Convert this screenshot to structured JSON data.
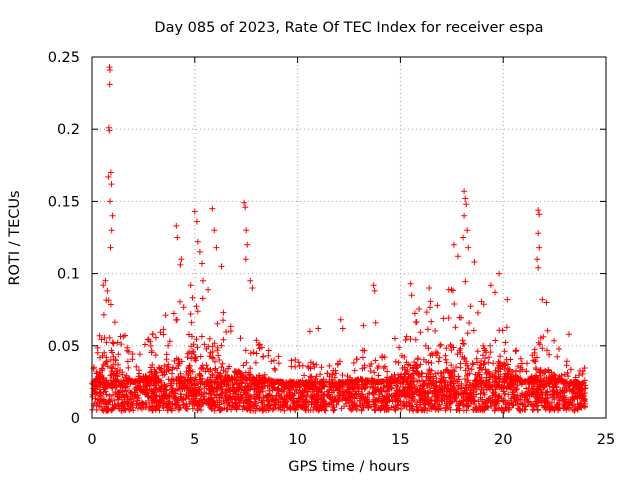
{
  "chart_data": {
    "type": "scatter",
    "title": "Day 085 of 2023, Rate Of TEC Index for receiver espa",
    "xlabel": "GPS time / hours",
    "ylabel": "ROTI / TECUs",
    "xlim": [
      0,
      25
    ],
    "ylim": [
      0,
      0.25
    ],
    "grid": true,
    "marker": "+",
    "series_color": "#ff0000",
    "x_ticks": [
      {
        "v": 0,
        "label": "0"
      },
      {
        "v": 5,
        "label": "5"
      },
      {
        "v": 10,
        "label": "10"
      },
      {
        "v": 15,
        "label": "15"
      },
      {
        "v": 20,
        "label": "20"
      },
      {
        "v": 25,
        "label": "25"
      }
    ],
    "y_ticks": [
      {
        "v": 0,
        "label": "0"
      },
      {
        "v": 0.05,
        "label": "0.05"
      },
      {
        "v": 0.1,
        "label": "0.1"
      },
      {
        "v": 0.15,
        "label": "0.15"
      },
      {
        "v": 0.2,
        "label": "0.2"
      },
      {
        "v": 0.25,
        "label": "0.25"
      }
    ],
    "data_x_range_hours": [
      0,
      24
    ],
    "baseline_band": [
      0.005,
      0.025
    ],
    "activity_envelope": [
      {
        "x": 0.0,
        "y": 0.04
      },
      {
        "x": 0.5,
        "y": 0.065
      },
      {
        "x": 0.8,
        "y": 0.1
      },
      {
        "x": 1.2,
        "y": 0.07
      },
      {
        "x": 2.0,
        "y": 0.045
      },
      {
        "x": 3.0,
        "y": 0.06
      },
      {
        "x": 4.0,
        "y": 0.085
      },
      {
        "x": 5.0,
        "y": 0.1
      },
      {
        "x": 6.0,
        "y": 0.09
      },
      {
        "x": 7.0,
        "y": 0.06
      },
      {
        "x": 8.0,
        "y": 0.055
      },
      {
        "x": 9.0,
        "y": 0.045
      },
      {
        "x": 10.0,
        "y": 0.04
      },
      {
        "x": 11.0,
        "y": 0.038
      },
      {
        "x": 12.0,
        "y": 0.04
      },
      {
        "x": 13.0,
        "y": 0.05
      },
      {
        "x": 14.0,
        "y": 0.045
      },
      {
        "x": 15.0,
        "y": 0.06
      },
      {
        "x": 16.0,
        "y": 0.08
      },
      {
        "x": 17.0,
        "y": 0.085
      },
      {
        "x": 18.0,
        "y": 0.1
      },
      {
        "x": 19.0,
        "y": 0.08
      },
      {
        "x": 20.0,
        "y": 0.07
      },
      {
        "x": 21.0,
        "y": 0.045
      },
      {
        "x": 22.0,
        "y": 0.065
      },
      {
        "x": 23.0,
        "y": 0.045
      },
      {
        "x": 24.0,
        "y": 0.035
      }
    ],
    "highlighted_points": [
      {
        "x": 0.85,
        "y": 0.243
      },
      {
        "x": 0.87,
        "y": 0.241
      },
      {
        "x": 0.86,
        "y": 0.231
      },
      {
        "x": 0.82,
        "y": 0.201
      },
      {
        "x": 0.84,
        "y": 0.199
      },
      {
        "x": 0.8,
        "y": 0.167
      },
      {
        "x": 0.92,
        "y": 0.17
      },
      {
        "x": 0.95,
        "y": 0.162
      },
      {
        "x": 0.88,
        "y": 0.15
      },
      {
        "x": 1.0,
        "y": 0.14
      },
      {
        "x": 0.96,
        "y": 0.13
      },
      {
        "x": 0.9,
        "y": 0.118
      },
      {
        "x": 0.55,
        "y": 0.092
      },
      {
        "x": 0.65,
        "y": 0.095
      },
      {
        "x": 0.75,
        "y": 0.088
      },
      {
        "x": 4.1,
        "y": 0.133
      },
      {
        "x": 4.15,
        "y": 0.125
      },
      {
        "x": 4.3,
        "y": 0.106
      },
      {
        "x": 4.35,
        "y": 0.11
      },
      {
        "x": 4.8,
        "y": 0.092
      },
      {
        "x": 5.0,
        "y": 0.143
      },
      {
        "x": 5.1,
        "y": 0.136
      },
      {
        "x": 5.15,
        "y": 0.122
      },
      {
        "x": 5.25,
        "y": 0.115
      },
      {
        "x": 5.35,
        "y": 0.107
      },
      {
        "x": 5.4,
        "y": 0.095
      },
      {
        "x": 5.85,
        "y": 0.145
      },
      {
        "x": 5.95,
        "y": 0.13
      },
      {
        "x": 6.05,
        "y": 0.118
      },
      {
        "x": 6.3,
        "y": 0.105
      },
      {
        "x": 7.4,
        "y": 0.149
      },
      {
        "x": 7.45,
        "y": 0.146
      },
      {
        "x": 7.5,
        "y": 0.13
      },
      {
        "x": 7.55,
        "y": 0.12
      },
      {
        "x": 7.48,
        "y": 0.11
      },
      {
        "x": 7.7,
        "y": 0.095
      },
      {
        "x": 7.8,
        "y": 0.09
      },
      {
        "x": 10.6,
        "y": 0.06
      },
      {
        "x": 11.0,
        "y": 0.062
      },
      {
        "x": 12.1,
        "y": 0.068
      },
      {
        "x": 12.2,
        "y": 0.062
      },
      {
        "x": 13.2,
        "y": 0.064
      },
      {
        "x": 13.7,
        "y": 0.092
      },
      {
        "x": 13.75,
        "y": 0.088
      },
      {
        "x": 13.8,
        "y": 0.066
      },
      {
        "x": 15.5,
        "y": 0.093
      },
      {
        "x": 15.55,
        "y": 0.085
      },
      {
        "x": 16.4,
        "y": 0.09
      },
      {
        "x": 16.8,
        "y": 0.078
      },
      {
        "x": 17.6,
        "y": 0.12
      },
      {
        "x": 17.8,
        "y": 0.112
      },
      {
        "x": 18.1,
        "y": 0.157
      },
      {
        "x": 18.15,
        "y": 0.152
      },
      {
        "x": 18.2,
        "y": 0.148
      },
      {
        "x": 18.1,
        "y": 0.14
      },
      {
        "x": 18.25,
        "y": 0.13
      },
      {
        "x": 18.05,
        "y": 0.125
      },
      {
        "x": 18.3,
        "y": 0.118
      },
      {
        "x": 18.6,
        "y": 0.108
      },
      {
        "x": 19.4,
        "y": 0.092
      },
      {
        "x": 19.6,
        "y": 0.087
      },
      {
        "x": 19.8,
        "y": 0.1
      },
      {
        "x": 20.2,
        "y": 0.082
      },
      {
        "x": 21.7,
        "y": 0.144
      },
      {
        "x": 21.75,
        "y": 0.141
      },
      {
        "x": 21.7,
        "y": 0.128
      },
      {
        "x": 21.75,
        "y": 0.118
      },
      {
        "x": 21.65,
        "y": 0.11
      },
      {
        "x": 21.7,
        "y": 0.104
      },
      {
        "x": 21.9,
        "y": 0.082
      },
      {
        "x": 22.1,
        "y": 0.08
      },
      {
        "x": 23.2,
        "y": 0.058
      }
    ]
  }
}
